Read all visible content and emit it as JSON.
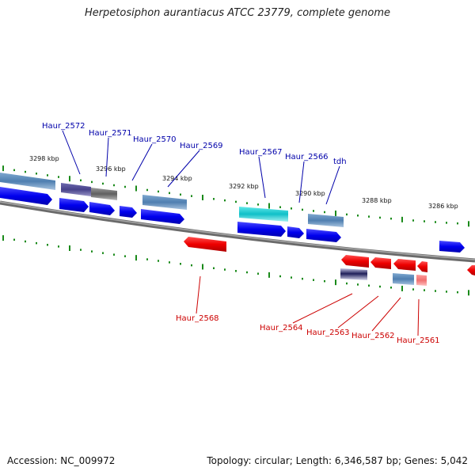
{
  "title": "Herpetosiphon aurantiacus ATCC 23779, complete genome",
  "accession": "Accession: NC_009972",
  "summary": "Topology: circular; Length: 6,346,587 bp; Genes: 5,042",
  "colors": {
    "forward_label": "#0000aa",
    "reverse_label": "#cc0000",
    "tick": "#1a8a1a",
    "backbone": "#808080"
  },
  "scale_labels": [
    {
      "text": "3298 kbp"
    },
    {
      "text": "3296 kbp"
    },
    {
      "text": "3294 kbp"
    },
    {
      "text": "3292 kbp"
    },
    {
      "text": "3290 kbp"
    },
    {
      "text": "3288 kbp"
    },
    {
      "text": "3286 kbp"
    }
  ],
  "gene_labels": [
    {
      "text": "Haur_2572",
      "strand": "forward"
    },
    {
      "text": "Haur_2571",
      "strand": "forward"
    },
    {
      "text": "Haur_2570",
      "strand": "forward"
    },
    {
      "text": "Haur_2569",
      "strand": "forward"
    },
    {
      "text": "Haur_2567",
      "strand": "forward"
    },
    {
      "text": "Haur_2566",
      "strand": "forward"
    },
    {
      "text": "tdh",
      "strand": "forward"
    },
    {
      "text": "Haur_2568",
      "strand": "reverse"
    },
    {
      "text": "Haur_2564",
      "strand": "reverse"
    },
    {
      "text": "Haur_2563",
      "strand": "reverse"
    },
    {
      "text": "Haur_2562",
      "strand": "reverse"
    },
    {
      "text": "Haur_2561",
      "strand": "reverse"
    }
  ]
}
